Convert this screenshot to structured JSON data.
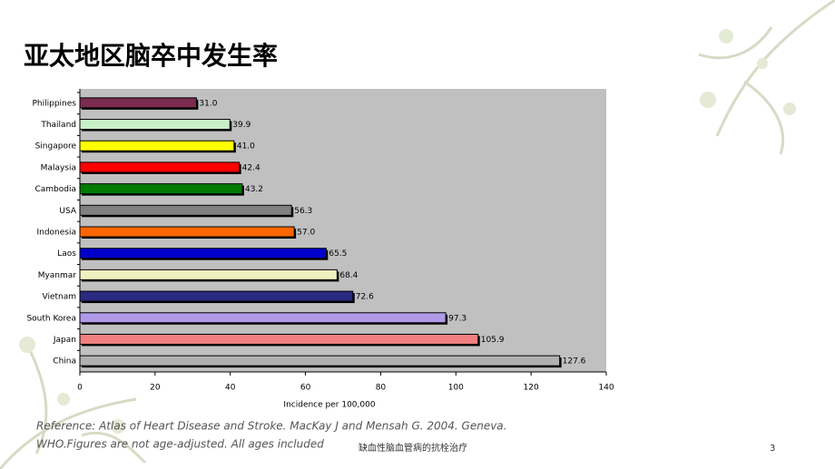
{
  "chart_data": {
    "type": "bar",
    "orientation": "horizontal",
    "title": "亚太地区脑卒中发生率",
    "categories": [
      "Philippines",
      "Thailand",
      "Singapore",
      "Malaysia",
      "Cambodia",
      "USA",
      "Indonesia",
      "Laos",
      "Myanmar",
      "Vietnam",
      "South Korea",
      "Japan",
      "China"
    ],
    "values": [
      31.0,
      39.9,
      41.0,
      42.4,
      43.2,
      56.3,
      57.0,
      65.5,
      68.4,
      72.6,
      97.3,
      105.9,
      127.6
    ],
    "value_labels": [
      "31.0",
      "39.9",
      "41.0",
      "42.4",
      "43.2",
      "56.3",
      "57.0",
      "65.5",
      "68.4",
      "72.6",
      "97.3",
      "105.9",
      "127.6"
    ],
    "colors": [
      "#7b2c50",
      "#c8f0c8",
      "#ffff00",
      "#ff0000",
      "#007a00",
      "#808080",
      "#ff6600",
      "#0000cc",
      "#f0f0c0",
      "#2a2a80",
      "#b09ae8",
      "#f08080",
      "#b0b0b0"
    ],
    "highlight_index": 12,
    "highlight_color": "#c0392b",
    "xlabel": "Incidence per 100,000",
    "xlim": [
      0,
      140
    ],
    "xticks": [
      0,
      20,
      40,
      60,
      80,
      100,
      120,
      140
    ],
    "plot_background": "#c0c0c0"
  },
  "reference": [
    "Reference: Atlas of Heart Disease and Stroke.  MacKay J and Mensah G. 2004.  Geneva.",
    "WHO.Figures are not age-adjusted.  All ages included"
  ],
  "footer": "缺血性脑血管病的抗栓治疗",
  "page_number": "3"
}
